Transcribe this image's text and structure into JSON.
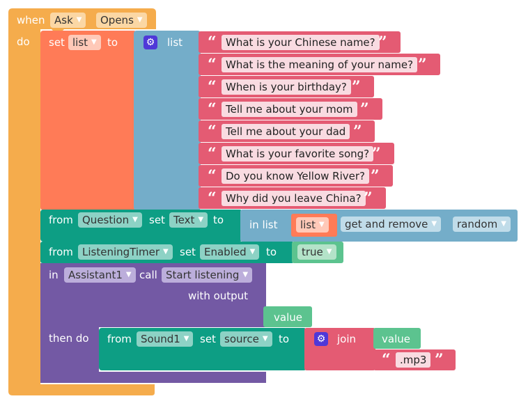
{
  "event": {
    "when_label": "when",
    "component": "Ask",
    "event_name": "Opens",
    "do_label": "do"
  },
  "set_list": {
    "set_label": "set",
    "var_name": "list",
    "to_label": "to",
    "list_label": "list",
    "items": [
      "What is your Chinese name?",
      "What is the meaning of your name?",
      "When is your birthday?",
      "Tell me about your mom",
      "Tell me about your dad",
      "What is your favorite song?",
      "Do you know Yellow River?",
      "Why did you leave China?"
    ]
  },
  "set_question": {
    "from_label": "from",
    "component": "Question",
    "set_label": "set",
    "property": "Text",
    "to_label": "to",
    "in_list_label": "in list",
    "list_var": "list",
    "operation": "get and remove",
    "position": "random"
  },
  "set_timer": {
    "from_label": "from",
    "component": "ListeningTimer",
    "set_label": "set",
    "property": "Enabled",
    "to_label": "to",
    "value": "true"
  },
  "assistant": {
    "in_label": "in",
    "component": "Assistant1",
    "call_label": "call",
    "method": "Start listening",
    "with_output_label": "with output",
    "value_label": "value",
    "then_do_label": "then do"
  },
  "set_sound": {
    "from_label": "from",
    "component": "Sound1",
    "set_label": "set",
    "property": "source",
    "to_label": "to",
    "join_label": "join",
    "value_label": "value",
    "suffix": ".mp3"
  },
  "icons": {
    "open_quote": "“",
    "close_quote": "”",
    "dropdown_arrow": "▼",
    "gear_icon": "⚙"
  },
  "colors": {
    "event_orange": "#f5ac4c",
    "variable_red": "#ff7b57",
    "list_blue": "#74adc9",
    "text_pink": "#e45b73",
    "component_green": "#0d9e84",
    "assistant_purple": "#7359a4",
    "logic_green": "#5cc38f"
  }
}
